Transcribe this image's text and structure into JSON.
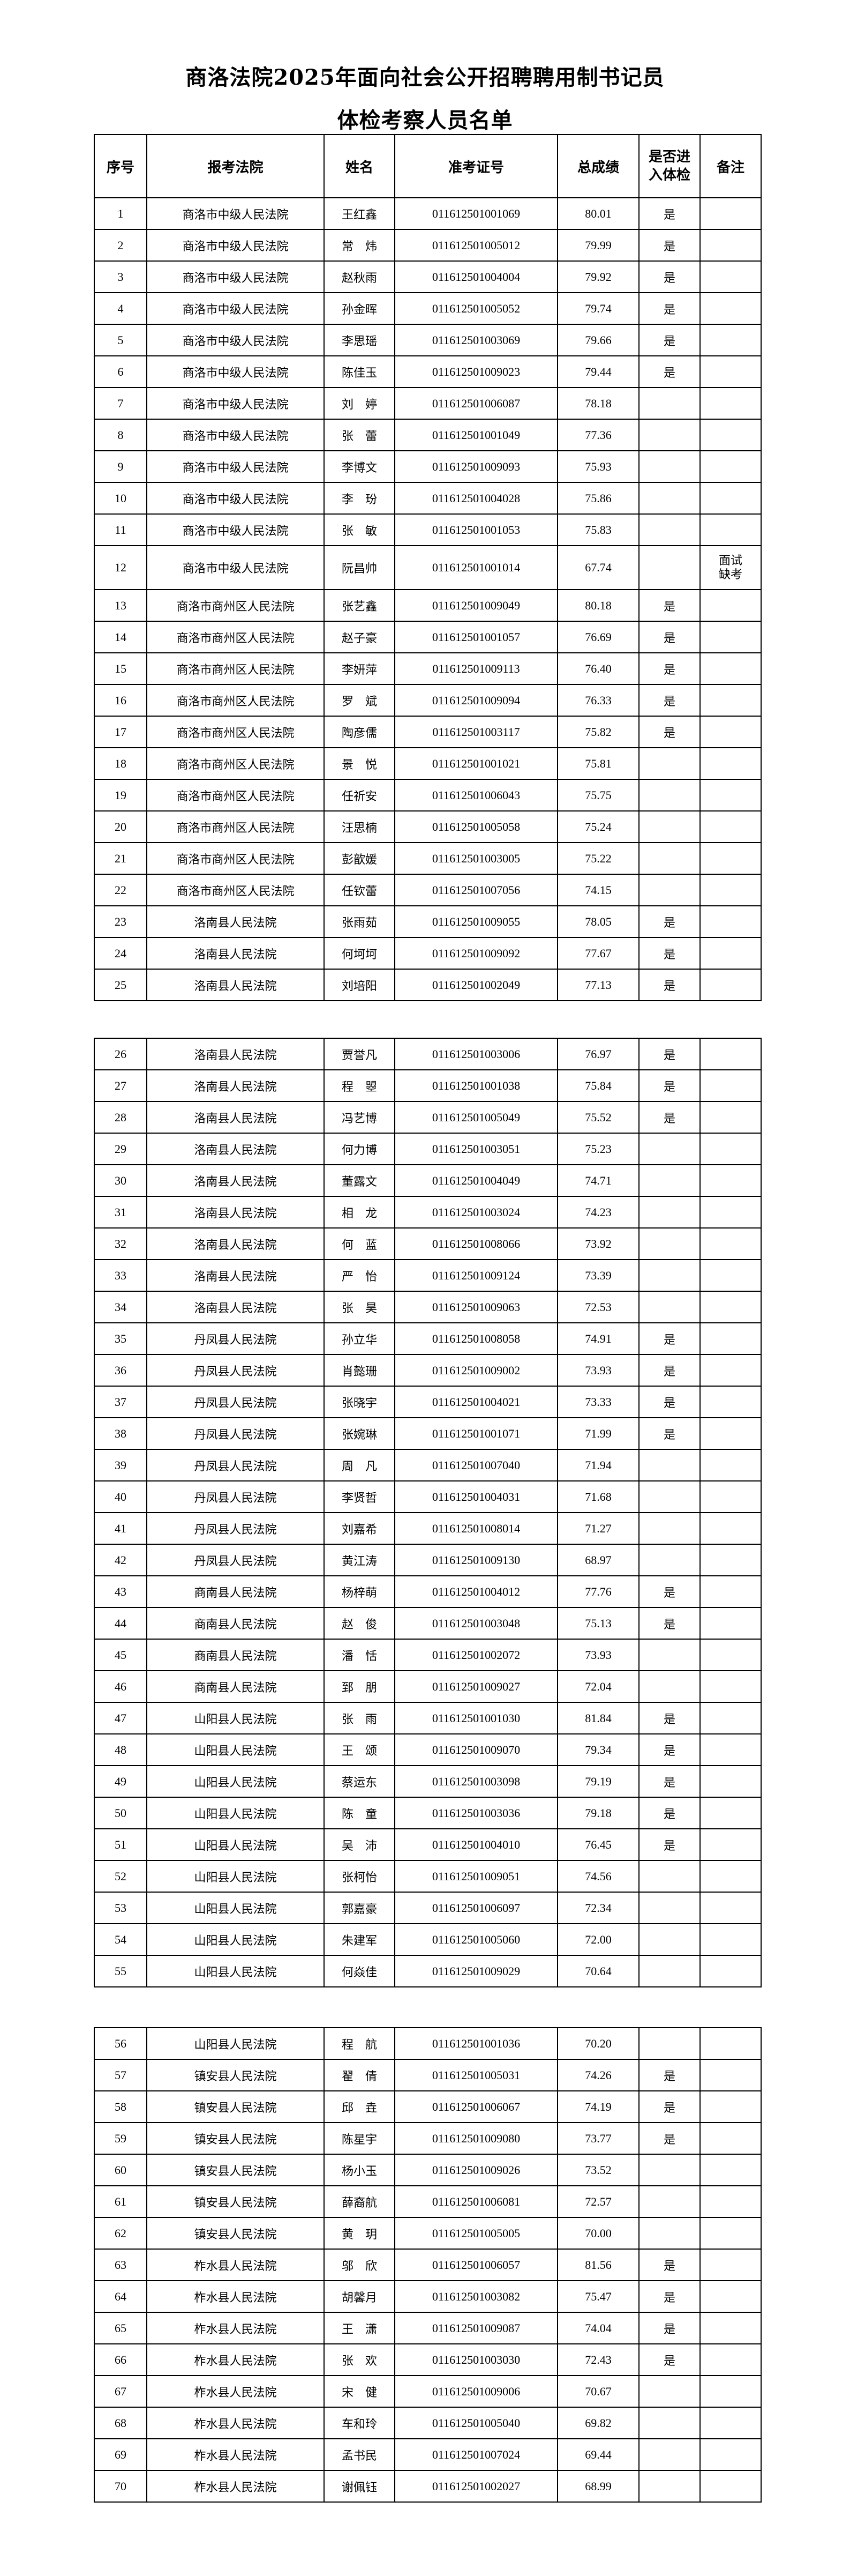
{
  "title_line1": "商洛法院2025年面向社会公开招聘聘用制书记员",
  "title_line2": "体检考察人员名单",
  "headers": {
    "no": "序号",
    "court": "报考法院",
    "name": "姓名",
    "exam_id": "准考证号",
    "score": "总成绩",
    "medical_1": "是否进",
    "medical_2": "入体检",
    "remark": "备注"
  },
  "pages": [
    {
      "rows_from": 1,
      "rows_to": 25,
      "has_header": true
    },
    {
      "rows_from": 26,
      "rows_to": 55,
      "has_header": false
    },
    {
      "rows_from": 56,
      "rows_to": 70,
      "has_header": false
    }
  ],
  "rows": [
    [
      "1",
      "商洛市中级人民法院",
      "王红鑫",
      "011612501001069",
      "80.01",
      "是",
      ""
    ],
    [
      "2",
      "商洛市中级人民法院",
      "常　炜",
      "011612501005012",
      "79.99",
      "是",
      ""
    ],
    [
      "3",
      "商洛市中级人民法院",
      "赵秋雨",
      "011612501004004",
      "79.92",
      "是",
      ""
    ],
    [
      "4",
      "商洛市中级人民法院",
      "孙金晖",
      "011612501005052",
      "79.74",
      "是",
      ""
    ],
    [
      "5",
      "商洛市中级人民法院",
      "李思瑶",
      "011612501003069",
      "79.66",
      "是",
      ""
    ],
    [
      "6",
      "商洛市中级人民法院",
      "陈佳玉",
      "011612501009023",
      "79.44",
      "是",
      ""
    ],
    [
      "7",
      "商洛市中级人民法院",
      "刘　婷",
      "011612501006087",
      "78.18",
      "",
      ""
    ],
    [
      "8",
      "商洛市中级人民法院",
      "张　蕾",
      "011612501001049",
      "77.36",
      "",
      ""
    ],
    [
      "9",
      "商洛市中级人民法院",
      "李博文",
      "011612501009093",
      "75.93",
      "",
      ""
    ],
    [
      "10",
      "商洛市中级人民法院",
      "李　玢",
      "011612501004028",
      "75.86",
      "",
      ""
    ],
    [
      "11",
      "商洛市中级人民法院",
      "张　敏",
      "011612501001053",
      "75.83",
      "",
      ""
    ],
    [
      "12",
      "商洛市中级人民法院",
      "阮昌帅",
      "011612501001014",
      "67.74",
      "",
      "面试缺考"
    ],
    [
      "13",
      "商洛市商州区人民法院",
      "张艺鑫",
      "011612501009049",
      "80.18",
      "是",
      ""
    ],
    [
      "14",
      "商洛市商州区人民法院",
      "赵子豪",
      "011612501001057",
      "76.69",
      "是",
      ""
    ],
    [
      "15",
      "商洛市商州区人民法院",
      "李妍萍",
      "011612501009113",
      "76.40",
      "是",
      ""
    ],
    [
      "16",
      "商洛市商州区人民法院",
      "罗　斌",
      "011612501009094",
      "76.33",
      "是",
      ""
    ],
    [
      "17",
      "商洛市商州区人民法院",
      "陶彦儒",
      "011612501003117",
      "75.82",
      "是",
      ""
    ],
    [
      "18",
      "商洛市商州区人民法院",
      "景　悦",
      "011612501001021",
      "75.81",
      "",
      ""
    ],
    [
      "19",
      "商洛市商州区人民法院",
      "任祈安",
      "011612501006043",
      "75.75",
      "",
      ""
    ],
    [
      "20",
      "商洛市商州区人民法院",
      "汪思楠",
      "011612501005058",
      "75.24",
      "",
      ""
    ],
    [
      "21",
      "商洛市商州区人民法院",
      "彭歆媛",
      "011612501003005",
      "75.22",
      "",
      ""
    ],
    [
      "22",
      "商洛市商州区人民法院",
      "任钦蕾",
      "011612501007056",
      "74.15",
      "",
      ""
    ],
    [
      "23",
      "洛南县人民法院",
      "张雨茹",
      "011612501009055",
      "78.05",
      "是",
      ""
    ],
    [
      "24",
      "洛南县人民法院",
      "何坷坷",
      "011612501009092",
      "77.67",
      "是",
      ""
    ],
    [
      "25",
      "洛南县人民法院",
      "刘培阳",
      "011612501002049",
      "77.13",
      "是",
      ""
    ],
    [
      "26",
      "洛南县人民法院",
      "贾誉凡",
      "011612501003006",
      "76.97",
      "是",
      ""
    ],
    [
      "27",
      "洛南县人民法院",
      "程　曌",
      "011612501001038",
      "75.84",
      "是",
      ""
    ],
    [
      "28",
      "洛南县人民法院",
      "冯艺博",
      "011612501005049",
      "75.52",
      "是",
      ""
    ],
    [
      "29",
      "洛南县人民法院",
      "何力博",
      "011612501003051",
      "75.23",
      "",
      ""
    ],
    [
      "30",
      "洛南县人民法院",
      "董露文",
      "011612501004049",
      "74.71",
      "",
      ""
    ],
    [
      "31",
      "洛南县人民法院",
      "相　龙",
      "011612501003024",
      "74.23",
      "",
      ""
    ],
    [
      "32",
      "洛南县人民法院",
      "何　蓝",
      "011612501008066",
      "73.92",
      "",
      ""
    ],
    [
      "33",
      "洛南县人民法院",
      "严　怡",
      "011612501009124",
      "73.39",
      "",
      ""
    ],
    [
      "34",
      "洛南县人民法院",
      "张　昊",
      "011612501009063",
      "72.53",
      "",
      ""
    ],
    [
      "35",
      "丹凤县人民法院",
      "孙立华",
      "011612501008058",
      "74.91",
      "是",
      ""
    ],
    [
      "36",
      "丹凤县人民法院",
      "肖懿珊",
      "011612501009002",
      "73.93",
      "是",
      ""
    ],
    [
      "37",
      "丹凤县人民法院",
      "张晓宇",
      "011612501004021",
      "73.33",
      "是",
      ""
    ],
    [
      "38",
      "丹凤县人民法院",
      "张婉琳",
      "011612501001071",
      "71.99",
      "是",
      ""
    ],
    [
      "39",
      "丹凤县人民法院",
      "周　凡",
      "011612501007040",
      "71.94",
      "",
      ""
    ],
    [
      "40",
      "丹凤县人民法院",
      "李贤哲",
      "011612501004031",
      "71.68",
      "",
      ""
    ],
    [
      "41",
      "丹凤县人民法院",
      "刘嘉希",
      "011612501008014",
      "71.27",
      "",
      ""
    ],
    [
      "42",
      "丹凤县人民法院",
      "黄江涛",
      "011612501009130",
      "68.97",
      "",
      ""
    ],
    [
      "43",
      "商南县人民法院",
      "杨梓萌",
      "011612501004012",
      "77.76",
      "是",
      ""
    ],
    [
      "44",
      "商南县人民法院",
      "赵　俊",
      "011612501003048",
      "75.13",
      "是",
      ""
    ],
    [
      "45",
      "商南县人民法院",
      "潘　恬",
      "011612501002072",
      "73.93",
      "",
      ""
    ],
    [
      "46",
      "商南县人民法院",
      "郅　朋",
      "011612501009027",
      "72.04",
      "",
      ""
    ],
    [
      "47",
      "山阳县人民法院",
      "张　雨",
      "011612501001030",
      "81.84",
      "是",
      ""
    ],
    [
      "48",
      "山阳县人民法院",
      "王　颂",
      "011612501009070",
      "79.34",
      "是",
      ""
    ],
    [
      "49",
      "山阳县人民法院",
      "蔡运东",
      "011612501003098",
      "79.19",
      "是",
      ""
    ],
    [
      "50",
      "山阳县人民法院",
      "陈　童",
      "011612501003036",
      "79.18",
      "是",
      ""
    ],
    [
      "51",
      "山阳县人民法院",
      "吴　沛",
      "011612501004010",
      "76.45",
      "是",
      ""
    ],
    [
      "52",
      "山阳县人民法院",
      "张柯怡",
      "011612501009051",
      "74.56",
      "",
      ""
    ],
    [
      "53",
      "山阳县人民法院",
      "郭嘉豪",
      "011612501006097",
      "72.34",
      "",
      ""
    ],
    [
      "54",
      "山阳县人民法院",
      "朱建军",
      "011612501005060",
      "72.00",
      "",
      ""
    ],
    [
      "55",
      "山阳县人民法院",
      "何焱佳",
      "011612501009029",
      "70.64",
      "",
      ""
    ],
    [
      "56",
      "山阳县人民法院",
      "程　航",
      "011612501001036",
      "70.20",
      "",
      ""
    ],
    [
      "57",
      "镇安县人民法院",
      "翟　倩",
      "011612501005031",
      "74.26",
      "是",
      ""
    ],
    [
      "58",
      "镇安县人民法院",
      "邱　垚",
      "011612501006067",
      "74.19",
      "是",
      ""
    ],
    [
      "59",
      "镇安县人民法院",
      "陈星宇",
      "011612501009080",
      "73.77",
      "是",
      ""
    ],
    [
      "60",
      "镇安县人民法院",
      "杨小玉",
      "011612501009026",
      "73.52",
      "",
      ""
    ],
    [
      "61",
      "镇安县人民法院",
      "薛裔航",
      "011612501006081",
      "72.57",
      "",
      ""
    ],
    [
      "62",
      "镇安县人民法院",
      "黄　玥",
      "011612501005005",
      "70.00",
      "",
      ""
    ],
    [
      "63",
      "柞水县人民法院",
      "邬　欣",
      "011612501006057",
      "81.56",
      "是",
      ""
    ],
    [
      "64",
      "柞水县人民法院",
      "胡馨月",
      "011612501003082",
      "75.47",
      "是",
      ""
    ],
    [
      "65",
      "柞水县人民法院",
      "王　潇",
      "011612501009087",
      "74.04",
      "是",
      ""
    ],
    [
      "66",
      "柞水县人民法院",
      "张　欢",
      "011612501003030",
      "72.43",
      "是",
      ""
    ],
    [
      "67",
      "柞水县人民法院",
      "宋　健",
      "011612501009006",
      "70.67",
      "",
      ""
    ],
    [
      "68",
      "柞水县人民法院",
      "车和玲",
      "011612501005040",
      "69.82",
      "",
      ""
    ],
    [
      "69",
      "柞水县人民法院",
      "孟书民",
      "011612501007024",
      "69.44",
      "",
      ""
    ],
    [
      "70",
      "柞水县人民法院",
      "谢佩钰",
      "011612501002027",
      "68.99",
      "",
      ""
    ]
  ]
}
